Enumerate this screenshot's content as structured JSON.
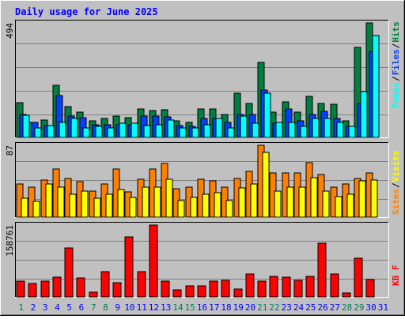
{
  "chart_data": [
    {
      "type": "bar",
      "title": "Daily usage for June 2025",
      "y_max_label": "494",
      "legend": [
        "Pages",
        "Files",
        "Hits"
      ],
      "colors": {
        "Hits": "#008040",
        "Files": "#0040ff",
        "Pages": "#00ffff"
      },
      "categories": [
        "1",
        "2",
        "3",
        "4",
        "5",
        "6",
        "7",
        "8",
        "9",
        "10",
        "11",
        "12",
        "13",
        "14",
        "15",
        "16",
        "17",
        "18",
        "19",
        "20",
        "21",
        "22",
        "23",
        "24",
        "25",
        "26",
        "27",
        "28",
        "29",
        "30",
        "31"
      ],
      "weekend_days": [
        "1",
        "7",
        "8",
        "14",
        "15",
        "21",
        "22",
        "28",
        "29"
      ],
      "ylim": [
        0,
        494
      ],
      "series": [
        {
          "name": "Hits",
          "values": [
            150,
            66,
            75,
            226,
            132,
            110,
            72,
            82,
            92,
            85,
            124,
            115,
            120,
            72,
            66,
            124,
            124,
            100,
            192,
            145,
            325,
            108,
            155,
            108,
            176,
            148,
            144,
            70,
            390,
            494,
            0
          ]
        },
        {
          "name": "Files",
          "values": [
            100,
            66,
            52,
            180,
            92,
            85,
            56,
            56,
            56,
            56,
            92,
            92,
            88,
            52,
            48,
            82,
            82,
            66,
            100,
            98,
            205,
            60,
            124,
            72,
            100,
            112,
            82,
            48,
            145,
            370,
            0
          ]
        },
        {
          "name": "Pages",
          "values": [
            94,
            40,
            50,
            66,
            82,
            40,
            48,
            40,
            60,
            60,
            52,
            56,
            76,
            40,
            40,
            56,
            82,
            40,
            92,
            60,
            192,
            66,
            66,
            48,
            82,
            82,
            66,
            48,
            196,
            438,
            0
          ]
        }
      ]
    },
    {
      "type": "bar",
      "y_max_label": "87",
      "legend": [
        "Sites",
        "Visits"
      ],
      "colors": {
        "Sites": "#ff8000",
        "Visits": "#ffff00"
      },
      "categories": [
        "1",
        "2",
        "3",
        "4",
        "5",
        "6",
        "7",
        "8",
        "9",
        "10",
        "11",
        "12",
        "13",
        "14",
        "15",
        "16",
        "17",
        "18",
        "19",
        "20",
        "21",
        "22",
        "23",
        "24",
        "25",
        "26",
        "27",
        "28",
        "29",
        "30",
        "31"
      ],
      "ylim": [
        0,
        87
      ],
      "series": [
        {
          "name": "Sites",
          "values": [
            40,
            36,
            45,
            58,
            47,
            43,
            32,
            40,
            58,
            31,
            46,
            58,
            65,
            34,
            36,
            46,
            44,
            36,
            47,
            55,
            87,
            54,
            54,
            54,
            66,
            52,
            36,
            40,
            47,
            54,
            0
          ]
        },
        {
          "name": "Visits",
          "values": [
            23,
            19,
            40,
            36,
            28,
            32,
            23,
            28,
            33,
            24,
            36,
            36,
            46,
            20,
            24,
            28,
            30,
            20,
            35,
            40,
            78,
            32,
            36,
            36,
            48,
            32,
            25,
            28,
            44,
            45,
            0
          ]
        }
      ]
    },
    {
      "type": "bar",
      "y_max_label": "158761",
      "legend": [
        "KB F"
      ],
      "colors": {
        "KB F": "#ff0000"
      },
      "categories": [
        "1",
        "2",
        "3",
        "4",
        "5",
        "6",
        "7",
        "8",
        "9",
        "10",
        "11",
        "12",
        "13",
        "14",
        "15",
        "16",
        "17",
        "18",
        "19",
        "20",
        "21",
        "22",
        "23",
        "24",
        "25",
        "26",
        "27",
        "28",
        "29",
        "30",
        "31"
      ],
      "ylim": [
        0,
        158761
      ],
      "series": [
        {
          "name": "KB F",
          "values": [
            35000,
            30000,
            35000,
            43000,
            109000,
            42000,
            10000,
            55000,
            32000,
            133000,
            55000,
            158761,
            35000,
            16000,
            25000,
            25000,
            35000,
            37000,
            17000,
            50000,
            35000,
            46000,
            44000,
            36000,
            46000,
            118000,
            50000,
            8000,
            85000,
            38000,
            0
          ]
        }
      ]
    }
  ]
}
